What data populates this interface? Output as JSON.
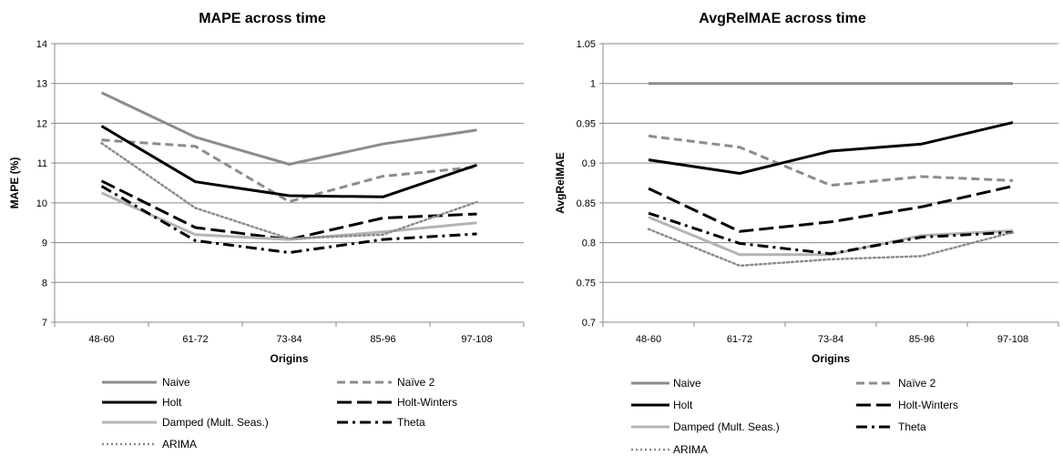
{
  "chart_data": [
    {
      "type": "line",
      "title": "MAPE across time",
      "xlabel": "Origins",
      "ylabel": "MAPE (%)",
      "categories": [
        "48-60",
        "61-72",
        "73-84",
        "85-96",
        "97-108"
      ],
      "ylim": [
        7,
        14
      ],
      "yticks": [
        "7",
        "8",
        "9",
        "10",
        "11",
        "12",
        "13",
        "14"
      ],
      "grid": true,
      "legend_position": "bottom",
      "series": [
        {
          "name": "Naive",
          "values": [
            12.77,
            11.65,
            10.97,
            11.48,
            11.83
          ],
          "color": "#8c8c8c",
          "style": "solid"
        },
        {
          "name": "Naïve 2",
          "values": [
            11.58,
            11.42,
            10.03,
            10.67,
            10.9
          ],
          "color": "#8c8c8c",
          "style": "dash"
        },
        {
          "name": "Holt",
          "values": [
            11.93,
            10.53,
            10.18,
            10.15,
            10.95
          ],
          "color": "#000000",
          "style": "solid"
        },
        {
          "name": "Holt-Winters",
          "values": [
            10.55,
            9.38,
            9.08,
            9.62,
            9.72
          ],
          "color": "#000000",
          "style": "longdash"
        },
        {
          "name": "Damped (Mult. Seas.)",
          "values": [
            10.25,
            9.2,
            9.08,
            9.27,
            9.5
          ],
          "color": "#b4b4b4",
          "style": "solid"
        },
        {
          "name": "Theta",
          "values": [
            10.42,
            9.05,
            8.75,
            9.08,
            9.22
          ],
          "color": "#000000",
          "style": "dashdot"
        },
        {
          "name": "ARIMA",
          "values": [
            11.5,
            9.87,
            9.1,
            9.2,
            10.02
          ],
          "color": "#8c8c8c",
          "style": "dot"
        }
      ]
    },
    {
      "type": "line",
      "title": "AvgRelMAE across time",
      "xlabel": "Origins",
      "ylabel": "AvgRelMAE",
      "categories": [
        "48-60",
        "61-72",
        "73-84",
        "85-96",
        "97-108"
      ],
      "ylim": [
        0.7,
        1.05
      ],
      "yticks": [
        "0.7",
        "0.75",
        "0.8",
        "0.85",
        "0.9",
        "0.95",
        "1",
        "1.05"
      ],
      "grid": true,
      "legend_position": "bottom",
      "series": [
        {
          "name": "Naive",
          "values": [
            1.0,
            1.0,
            1.0,
            1.0,
            1.0
          ],
          "color": "#8c8c8c",
          "style": "solid"
        },
        {
          "name": "Naïve 2",
          "values": [
            0.934,
            0.92,
            0.872,
            0.883,
            0.878
          ],
          "color": "#8c8c8c",
          "style": "dash"
        },
        {
          "name": "Holt",
          "values": [
            0.904,
            0.887,
            0.915,
            0.924,
            0.951
          ],
          "color": "#000000",
          "style": "solid"
        },
        {
          "name": "Holt-Winters",
          "values": [
            0.868,
            0.814,
            0.826,
            0.845,
            0.871
          ],
          "color": "#000000",
          "style": "longdash"
        },
        {
          "name": "Damped (Mult. Seas.)",
          "values": [
            0.832,
            0.785,
            0.785,
            0.809,
            0.815
          ],
          "color": "#b4b4b4",
          "style": "solid"
        },
        {
          "name": "Theta",
          "values": [
            0.837,
            0.799,
            0.786,
            0.807,
            0.813
          ],
          "color": "#000000",
          "style": "dashdot"
        },
        {
          "name": "ARIMA",
          "values": [
            0.817,
            0.771,
            0.779,
            0.783,
            0.813
          ],
          "color": "#8c8c8c",
          "style": "dot"
        }
      ]
    }
  ]
}
